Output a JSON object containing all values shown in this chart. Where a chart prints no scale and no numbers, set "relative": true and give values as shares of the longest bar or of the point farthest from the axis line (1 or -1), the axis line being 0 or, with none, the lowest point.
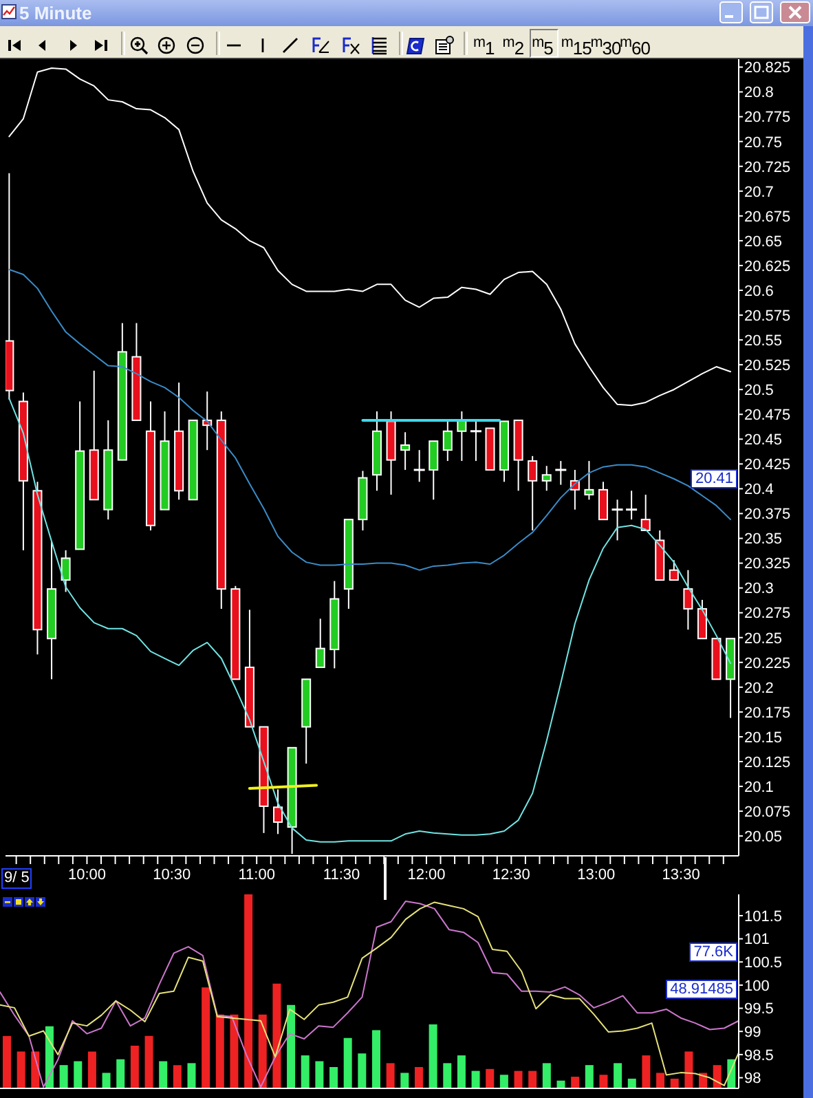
{
  "chart_data": [
    {
      "type": "other",
      "title": "5 Minute",
      "annotations": [
        "$^{m}$1",
        "$^{m}$2",
        "$^{m}$5",
        "$^{m}$15",
        "$^{m}$30",
        "$^{m}$60"
      ]
    },
    {
      "type": "candlestick",
      "xlabel": "9/ 5",
      "x": [
        9.5417,
        9.625,
        9.7083,
        9.7917,
        9.875,
        9.9583,
        10.0417,
        10.125,
        10.2083,
        10.2917,
        10.375,
        10.4583,
        10.5417,
        10.625,
        10.7083,
        10.7917,
        10.875,
        10.9583,
        11.0417,
        11.125,
        11.2083,
        11.2917,
        11.375,
        11.4583,
        11.5417,
        11.625,
        11.7083,
        11.7917,
        11.875,
        11.9583,
        12.0417,
        12.125,
        12.2083,
        12.2917,
        12.375,
        12.4583,
        12.5417,
        12.625,
        12.7083,
        12.7917,
        12.875,
        12.9583,
        13.0417,
        13.125,
        13.2083,
        13.2917,
        13.375,
        13.4583,
        13.5417,
        13.625,
        13.7083,
        13.7917
      ],
      "ohlc": [
        [
          20.549,
          20.718,
          20.49,
          20.499
        ],
        [
          20.488,
          20.497,
          20.338,
          20.408
        ],
        [
          20.398,
          20.407,
          20.233,
          20.258
        ],
        [
          20.249,
          20.347,
          20.208,
          20.299
        ],
        [
          20.308,
          20.338,
          20.296,
          20.33
        ],
        [
          20.339,
          20.488,
          20.339,
          20.438
        ],
        [
          20.439,
          20.519,
          20.389,
          20.389
        ],
        [
          20.379,
          20.469,
          20.369,
          20.439
        ],
        [
          20.429,
          20.567,
          20.429,
          20.538
        ],
        [
          20.533,
          20.567,
          20.469,
          20.469
        ],
        [
          20.458,
          20.488,
          20.358,
          20.363
        ],
        [
          20.379,
          20.478,
          20.379,
          20.448
        ],
        [
          20.458,
          20.507,
          20.389,
          20.398
        ],
        [
          20.389,
          20.469,
          20.389,
          20.469
        ],
        [
          20.469,
          20.498,
          20.439,
          20.464
        ],
        [
          20.469,
          20.478,
          20.279,
          20.299
        ],
        [
          20.299,
          20.302,
          20.208,
          20.208
        ],
        [
          20.22,
          20.278,
          20.16,
          20.16
        ],
        [
          20.16,
          20.16,
          20.053,
          20.08
        ],
        [
          20.079,
          20.097,
          20.052,
          20.064
        ],
        [
          20.059,
          20.139,
          20.032,
          20.139
        ],
        [
          20.16,
          20.208,
          20.123,
          20.208
        ],
        [
          20.22,
          20.269,
          20.22,
          20.239
        ],
        [
          20.238,
          20.307,
          20.219,
          20.289
        ],
        [
          20.299,
          20.369,
          20.279,
          20.369
        ],
        [
          20.369,
          20.418,
          20.358,
          20.411
        ],
        [
          20.414,
          20.478,
          20.398,
          20.458
        ],
        [
          20.468,
          20.478,
          20.394,
          20.429
        ],
        [
          20.439,
          20.457,
          20.419,
          20.444
        ],
        [
          20.419,
          20.439,
          20.407,
          20.419
        ],
        [
          20.419,
          20.448,
          20.389,
          20.448
        ],
        [
          20.439,
          20.469,
          20.428,
          20.458
        ],
        [
          20.458,
          20.478,
          20.428,
          20.469
        ],
        [
          20.458,
          20.469,
          20.428,
          20.458
        ],
        [
          20.461,
          20.461,
          20.419,
          20.419
        ],
        [
          20.419,
          20.468,
          20.407,
          20.468
        ],
        [
          20.469,
          20.469,
          20.398,
          20.429
        ],
        [
          20.428,
          20.433,
          20.358,
          20.408
        ],
        [
          20.408,
          20.423,
          20.398,
          20.414
        ],
        [
          20.419,
          20.428,
          20.404,
          20.419
        ],
        [
          20.408,
          20.419,
          20.379,
          20.399
        ],
        [
          20.394,
          20.428,
          20.389,
          20.399
        ],
        [
          20.399,
          20.407,
          20.369,
          20.369
        ],
        [
          20.379,
          20.389,
          20.348,
          20.379
        ],
        [
          20.379,
          20.398,
          20.369,
          20.379
        ],
        [
          20.369,
          20.394,
          20.358,
          20.358
        ],
        [
          20.348,
          20.358,
          20.308,
          20.308
        ],
        [
          20.318,
          20.328,
          20.308,
          20.308
        ],
        [
          20.299,
          20.318,
          20.258,
          20.279
        ],
        [
          20.279,
          20.288,
          20.249,
          20.249
        ],
        [
          20.249,
          20.249,
          20.208,
          20.208
        ],
        [
          20.208,
          20.249,
          20.169,
          20.249
        ]
      ],
      "colors": [
        "#e8101c",
        "#e8101c",
        "#e8101c",
        "#22cc22",
        "#22cc22",
        "#22cc22",
        "#e8101c",
        "#22cc22",
        "#22cc22",
        "#e8101c",
        "#e8101c",
        "#22cc22",
        "#e8101c",
        "#22cc22",
        "#e8101c",
        "#e8101c",
        "#e8101c",
        "#e8101c",
        "#e8101c",
        "#e8101c",
        "#22cc22",
        "#22cc22",
        "#22cc22",
        "#22cc22",
        "#22cc22",
        "#22cc22",
        "#22cc22",
        "#e8101c",
        "#22cc22",
        "#ffffff",
        "#22cc22",
        "#22cc22",
        "#22cc22",
        "#ffffff",
        "#e8101c",
        "#22cc22",
        "#e8101c",
        "#e8101c",
        "#22cc22",
        "#ffffff",
        "#e8101c",
        "#22cc22",
        "#e8101c",
        "#ffffff",
        "#ffffff",
        "#e8101c",
        "#e8101c",
        "#e8101c",
        "#e8101c",
        "#e8101c",
        "#e8101c",
        "#22cc22"
      ],
      "series": [
        {
          "type": "line",
          "color": "#ffffff",
          "values": [
            20.755,
            20.773,
            20.82,
            20.824,
            20.823,
            20.813,
            20.806,
            20.792,
            20.79,
            20.783,
            20.782,
            20.774,
            20.762,
            20.72,
            20.688,
            20.671,
            20.662,
            20.65,
            20.643,
            20.62,
            20.606,
            20.599,
            20.599,
            20.599,
            20.601,
            20.599,
            20.606,
            20.606,
            20.59,
            20.583,
            20.592,
            20.593,
            20.603,
            20.601,
            20.596,
            20.611,
            20.618,
            20.619,
            20.606,
            20.581,
            20.546,
            20.523,
            20.502,
            20.485,
            20.484,
            20.487,
            20.494,
            20.5,
            20.508,
            20.516,
            20.523,
            20.518
          ]
        },
        {
          "type": "line",
          "color": "#3a8cc8",
          "values": [
            20.621,
            20.616,
            20.602,
            20.579,
            20.558,
            20.546,
            20.535,
            20.524,
            20.523,
            20.516,
            20.508,
            20.502,
            20.492,
            20.479,
            20.468,
            20.449,
            20.431,
            20.405,
            20.38,
            20.352,
            20.336,
            20.326,
            20.323,
            20.323,
            20.324,
            20.324,
            20.325,
            20.325,
            20.323,
            20.318,
            20.322,
            20.323,
            20.325,
            20.326,
            20.324,
            20.333,
            20.345,
            20.356,
            20.373,
            20.391,
            20.405,
            20.416,
            20.422,
            20.424,
            20.424,
            20.422,
            20.416,
            20.41,
            20.403,
            20.393,
            20.383,
            20.369
          ]
        },
        {
          "type": "line",
          "color": "#70e4e4",
          "values": [
            20.491,
            20.456,
            20.394,
            20.347,
            20.301,
            20.28,
            20.265,
            20.259,
            20.259,
            20.252,
            20.236,
            20.229,
            20.222,
            20.237,
            20.245,
            20.229,
            20.199,
            20.167,
            20.125,
            20.083,
            20.058,
            20.046,
            20.044,
            20.044,
            20.045,
            20.045,
            20.045,
            20.045,
            20.052,
            20.055,
            20.053,
            20.052,
            20.051,
            20.051,
            20.052,
            20.055,
            20.066,
            20.093,
            20.146,
            20.204,
            20.264,
            20.308,
            20.34,
            20.361,
            20.363,
            20.359,
            20.343,
            20.326,
            20.301,
            20.278,
            20.252,
            20.224
          ]
        },
        {
          "type": "line",
          "color": "#40d8ec",
          "x": [
            11.625,
            12.43
          ],
          "values": [
            20.469,
            20.469
          ]
        },
        {
          "type": "line",
          "color": "#f0f020",
          "x": [
            10.958,
            11.352
          ],
          "values": [
            20.098,
            20.101
          ]
        }
      ],
      "xlim": [
        9.52,
        13.84
      ],
      "xticks": [
        {
          "value": 9.5833,
          "label": null
        },
        {
          "value": 9.6667,
          "label": null
        },
        {
          "value": 9.75,
          "label": null
        },
        {
          "value": 9.8333,
          "label": null
        },
        {
          "value": 9.9167,
          "label": null
        },
        {
          "value": 10,
          "label": "10:00"
        },
        {
          "value": 10.0833,
          "label": null
        },
        {
          "value": 10.1667,
          "label": null
        },
        {
          "value": 10.25,
          "label": null
        },
        {
          "value": 10.3333,
          "label": null
        },
        {
          "value": 10.4167,
          "label": null
        },
        {
          "value": 10.5,
          "label": "10:30"
        },
        {
          "value": 10.5833,
          "label": null
        },
        {
          "value": 10.6667,
          "label": null
        },
        {
          "value": 10.75,
          "label": null
        },
        {
          "value": 10.8333,
          "label": null
        },
        {
          "value": 10.9167,
          "label": null
        },
        {
          "value": 11,
          "label": "11:00"
        },
        {
          "value": 11.0833,
          "label": null
        },
        {
          "value": 11.1667,
          "label": null
        },
        {
          "value": 11.25,
          "label": null
        },
        {
          "value": 11.3333,
          "label": null
        },
        {
          "value": 11.4167,
          "label": null
        },
        {
          "value": 11.5,
          "label": "11:30"
        },
        {
          "value": 11.5833,
          "label": null
        },
        {
          "value": 11.6667,
          "label": null
        },
        {
          "value": 11.75,
          "label": null
        },
        {
          "value": 11.8333,
          "label": null
        },
        {
          "value": 11.9167,
          "label": null
        },
        {
          "value": 12,
          "label": "12:00"
        },
        {
          "value": 12.0833,
          "label": null
        },
        {
          "value": 12.1667,
          "label": null
        },
        {
          "value": 12.25,
          "label": null
        },
        {
          "value": 12.3333,
          "label": null
        },
        {
          "value": 12.4167,
          "label": null
        },
        {
          "value": 12.5,
          "label": "12:30"
        },
        {
          "value": 12.5833,
          "label": null
        },
        {
          "value": 12.6667,
          "label": null
        },
        {
          "value": 12.75,
          "label": null
        },
        {
          "value": 12.8333,
          "label": null
        },
        {
          "value": 12.9167,
          "label": null
        },
        {
          "value": 13,
          "label": "13:00"
        },
        {
          "value": 13.0833,
          "label": null
        },
        {
          "value": 13.1667,
          "label": null
        },
        {
          "value": 13.25,
          "label": null
        },
        {
          "value": 13.3333,
          "label": null
        },
        {
          "value": 13.4167,
          "label": null
        },
        {
          "value": 13.5,
          "label": "13:30"
        },
        {
          "value": 13.5833,
          "label": null
        },
        {
          "value": 13.6667,
          "label": null
        },
        {
          "value": 13.75,
          "label": null
        }
      ],
      "ylim": [
        20.03,
        20.833
      ],
      "yticks": [
        20.05,
        20.075,
        20.1,
        20.125,
        20.15,
        20.175,
        20.2,
        20.225,
        20.25,
        20.275,
        20.3,
        20.325,
        20.35,
        20.375,
        20.4,
        20.425,
        20.45,
        20.475,
        20.5,
        20.525,
        20.55,
        20.575,
        20.6,
        20.625,
        20.65,
        20.675,
        20.7,
        20.725,
        20.75,
        20.775,
        20.8,
        20.825
      ],
      "marker": "none",
      "annotations": [
        {
          "text": "20.41",
          "y": 20.41
        }
      ]
    },
    {
      "type": "bar",
      "categories": [
        null,
        null,
        null,
        null,
        null,
        null,
        null,
        null,
        null,
        null,
        null,
        null,
        null,
        null,
        null,
        null,
        null,
        null,
        null,
        null,
        null,
        null,
        null,
        null,
        null,
        null,
        null,
        null,
        null,
        null,
        null,
        null,
        null,
        null,
        null,
        null,
        null,
        null,
        null,
        null,
        null,
        null,
        null,
        null,
        null,
        null,
        null,
        null,
        null,
        null,
        null,
        null
      ],
      "relative": true,
      "values": [
        0.27,
        0.19,
        0.19,
        0.32,
        0.12,
        0.14,
        0.19,
        0.08,
        0.15,
        0.22,
        0.27,
        0.14,
        0.12,
        0.13,
        0.52,
        0.38,
        0.38,
        1,
        0.38,
        0.54,
        0.43,
        0.17,
        0.14,
        0.11,
        0.26,
        0.18,
        0.3,
        0.13,
        0.08,
        0.11,
        0.33,
        0.13,
        0.17,
        0.09,
        0.1,
        0.07,
        0.09,
        0.09,
        0.13,
        0.04,
        0.06,
        0.12,
        0.07,
        0.13,
        0.05,
        0.17,
        0.08,
        0.05,
        0.19,
        0.08,
        0.12,
        0.15
      ],
      "colors": [
        "#ee2222",
        "#ee2222",
        "#ee2222",
        "#33ee66",
        "#33ee66",
        "#33ee66",
        "#ee2222",
        "#33ee66",
        "#33ee66",
        "#ee2222",
        "#ee2222",
        "#33ee66",
        "#ee2222",
        "#33ee66",
        "#ee2222",
        "#ee2222",
        "#ee2222",
        "#ee2222",
        "#ee2222",
        "#ee2222",
        "#33ee66",
        "#33ee66",
        "#33ee66",
        "#33ee66",
        "#33ee66",
        "#33ee66",
        "#33ee66",
        "#ee2222",
        "#33ee66",
        "#ee2222",
        "#33ee66",
        "#33ee66",
        "#33ee66",
        "#33ee66",
        "#ee2222",
        "#33ee66",
        "#ee2222",
        "#ee2222",
        "#33ee66",
        "#33ee66",
        "#ee2222",
        "#33ee66",
        "#ee2222",
        "#33ee66",
        "#33ee66",
        "#ee2222",
        "#ee2222",
        "#ee2222",
        "#ee2222",
        "#ee2222",
        "#ee2222",
        "#33ee66"
      ],
      "tick_labels": false
    },
    {
      "type": "line",
      "categories": [
        null,
        null,
        null,
        null,
        null,
        null,
        null,
        null,
        null,
        null,
        null,
        null,
        null,
        null,
        null,
        null,
        null,
        null,
        null,
        null,
        null,
        null,
        null,
        null,
        null,
        null,
        null,
        null,
        null,
        null,
        null,
        null,
        null,
        null,
        null,
        null,
        null,
        null,
        null,
        null,
        null,
        null,
        null,
        null,
        null,
        null,
        null,
        null,
        null,
        null,
        null,
        null
      ],
      "series": [
        {
          "color": "#cc77cc",
          "values": [
            99.85,
            99.35,
            98.9,
            97.8,
            98.39,
            99.23,
            98.95,
            99.07,
            99.66,
            99.12,
            99.29,
            100.02,
            100.69,
            100.83,
            100.64,
            99.35,
            99.32,
            98.5,
            97.8,
            98.45,
            98.95,
            98.84,
            99.12,
            99.09,
            99.4,
            99.74,
            101.25,
            101.37,
            101.81,
            101.76,
            101.65,
            101.2,
            101.14,
            100.92,
            100.27,
            100.24,
            99.87,
            99.87,
            99.85,
            99.96,
            99.79,
            99.51,
            99.63,
            99.77,
            99.4,
            99.4,
            99.48,
            99.29,
            99.18,
            99.04,
            99.07,
            99.23
          ]
        },
        {
          "color": "#e6e27a",
          "values": [
            99.57,
            99.51,
            98.9,
            99.01,
            98.5,
            99.18,
            99.12,
            99.35,
            99.66,
            99.46,
            99.21,
            99.82,
            99.87,
            100.6,
            100.52,
            99.32,
            99.29,
            99.26,
            99.23,
            98.45,
            99.48,
            99.26,
            99.57,
            99.63,
            99.74,
            100.58,
            100.8,
            101.03,
            101.42,
            101.65,
            101.79,
            101.72,
            101.65,
            101.48,
            100.77,
            100.73,
            100.3,
            99.49,
            99.79,
            99.71,
            99.71,
            99.37,
            98.99,
            99.01,
            99.07,
            99.18,
            98.06,
            98.11,
            98.09,
            98,
            97.83,
            98.54
          ]
        }
      ],
      "ylim": [
        97.77,
        101.96
      ],
      "yticks": [
        98,
        98.5,
        99,
        99.5,
        100,
        100.5,
        101,
        101.5
      ],
      "tick_labels": "y",
      "marker": "none",
      "annotations": [
        "77.6K",
        "48.91485"
      ]
    }
  ]
}
